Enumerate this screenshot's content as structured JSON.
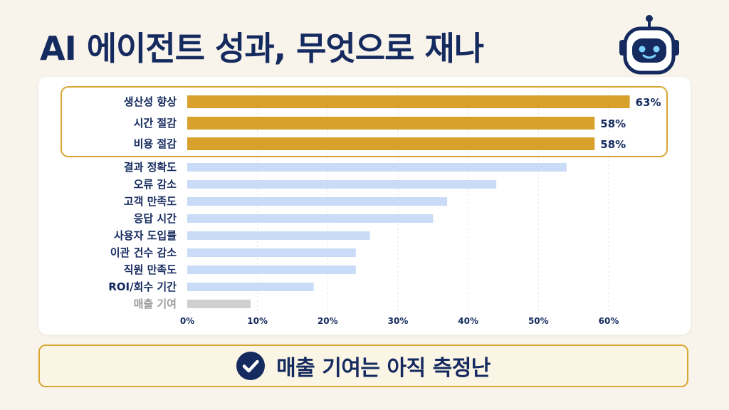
{
  "title": "AI 에이전트 성과, 무엇으로 재나",
  "banner": {
    "text": "매출 기여는 아직 측정난",
    "icon": "check-circle-icon"
  },
  "header_icon": "robot-icon",
  "colors": {
    "highlight": "#d7a12b",
    "normal": "#c9dbf6",
    "muted": "#cfcfcf",
    "text": "#152a5e",
    "border": "#d8a632"
  },
  "chart_data": {
    "type": "bar",
    "orientation": "horizontal",
    "title": "",
    "xlabel": "",
    "ylabel": "",
    "xlim": [
      0,
      60
    ],
    "x_ticks": [
      0,
      10,
      20,
      30,
      40,
      50,
      60
    ],
    "x_tick_labels": [
      "0%",
      "10%",
      "20%",
      "30%",
      "40%",
      "50%",
      "60%"
    ],
    "grid": "vertical dashed",
    "categories": [
      "생산성 향상",
      "시간 절감",
      "비용 절감",
      "결과 정확도",
      "오류 감소",
      "고객 만족도",
      "응답 시간",
      "사용자 도입률",
      "이관 건수 감소",
      "직원 만족도",
      "ROI/회수 기간",
      "매출 기여"
    ],
    "values": [
      63,
      58,
      58,
      54,
      44,
      37,
      35,
      26,
      24,
      24,
      18,
      9
    ],
    "value_labels": [
      "63%",
      "58%",
      "58%",
      "",
      "",
      "",
      "",
      "",
      "",
      "",
      "",
      ""
    ],
    "highlight": [
      true,
      true,
      true,
      false,
      false,
      false,
      false,
      false,
      false,
      false,
      false,
      false
    ],
    "muted": [
      false,
      false,
      false,
      false,
      false,
      false,
      false,
      false,
      false,
      false,
      false,
      true
    ]
  }
}
